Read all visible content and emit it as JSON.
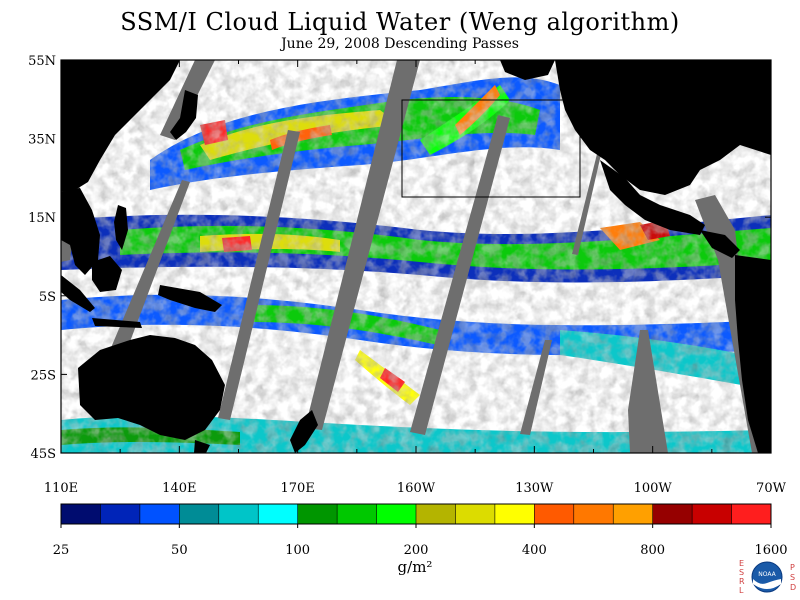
{
  "title": "SSM/I Cloud Liquid Water (Weng algorithm)",
  "subtitle": "June 29, 2008  Descending Passes",
  "lat_labels": [
    "55N",
    "35N",
    "15N",
    "5S",
    "25S",
    "45S"
  ],
  "lon_labels": [
    "110E",
    "140E",
    "170E",
    "160W",
    "130W",
    "100W",
    "70W"
  ],
  "colorbar": {
    "colors": [
      "#000c6f",
      "#0024b8",
      "#0052ff",
      "#008c96",
      "#00c5c8",
      "#00ffff",
      "#009600",
      "#00c800",
      "#00ff00",
      "#b4b400",
      "#dcdc00",
      "#ffff00",
      "#ff5a00",
      "#ff7800",
      "#ffa000",
      "#960000",
      "#c80000",
      "#ff1e1e"
    ],
    "tick_labels": [
      "25",
      "50",
      "100",
      "200",
      "400",
      "800",
      "1600"
    ],
    "unit": "g/m²"
  },
  "colors": {
    "land": "#000000",
    "no_data": "#6e6e6e",
    "clear": "#ffffff"
  },
  "logo": {
    "left_letters": "ESRL",
    "right_letters": "PSD",
    "seal_text": "NOAA",
    "letter_color": "#d04040"
  }
}
